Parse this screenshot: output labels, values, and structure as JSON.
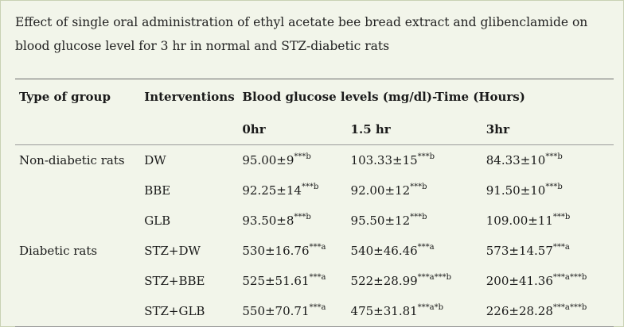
{
  "caption": "Effect of single oral administration of ethyl acetate bee bread extract and glibenclamide on blood glucose level for 3 hr in normal and STZ-diabetic rats",
  "table": {
    "headers": {
      "group": "Type of group",
      "intervention": "Interventions",
      "blood_glucose": "Blood glucose levels (mg/dl)-Time (Hours)"
    },
    "time_points": [
      "0hr",
      "1.5 hr",
      "3hr"
    ],
    "rows": [
      {
        "group": "Non-diabetic rats",
        "intervention": "DW",
        "v0": "95.00±9",
        "s0": "***b",
        "v1": "103.33±15",
        "s1": "***b",
        "v2": "84.33±10",
        "s2": "***b"
      },
      {
        "group": "",
        "intervention": "BBE",
        "v0": "92.25±14",
        "s0": "***b",
        "v1": "92.00±12",
        "s1": "***b",
        "v2": "91.50±10",
        "s2": "***b"
      },
      {
        "group": "",
        "intervention": "GLB",
        "v0": "93.50±8",
        "s0": "***b",
        "v1": "95.50±12",
        "s1": "***b",
        "v2": "109.00±11",
        "s2": "***b"
      },
      {
        "group": "Diabetic rats",
        "intervention": "STZ+DW",
        "v0": "530±16.76",
        "s0": "***a",
        "v1": "540±46.46",
        "s1": "***a",
        "v2": "573±14.57",
        "s2": "***a"
      },
      {
        "group": "",
        "intervention": "STZ+BBE",
        "v0": "525±51.61",
        "s0": "***a",
        "v1": "522±28.99",
        "s1": "***a***b",
        "v2": "200±41.36",
        "s2": "***a***b"
      },
      {
        "group": "",
        "intervention": "STZ+GLB",
        "v0": "550±70.71",
        "s0": "***a",
        "v1": "475±31.81",
        "s1": "***a*b",
        "v2": "226±28.28",
        "s2": "***a***b"
      }
    ]
  }
}
